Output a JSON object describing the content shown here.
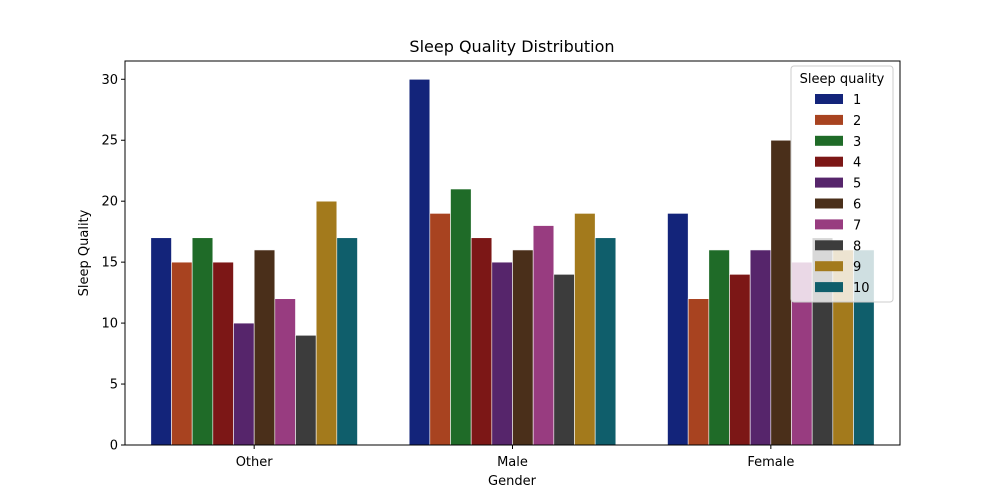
{
  "chart_data": {
    "type": "bar",
    "title": "Sleep Quality Distribution",
    "xlabel": "Gender",
    "ylabel": "Sleep Quality",
    "categories": [
      "Other",
      "Male",
      "Female"
    ],
    "ylim": [
      0,
      31.5
    ],
    "yticks": [
      "0",
      "5",
      "10",
      "15",
      "20",
      "25",
      "30"
    ],
    "grid": false,
    "legend": {
      "title": "Sleep quality",
      "placement": "top-right"
    },
    "series": [
      {
        "name": "1",
        "color": "#13247a",
        "values": [
          17,
          30,
          19
        ]
      },
      {
        "name": "2",
        "color": "#a84320",
        "values": [
          15,
          19,
          12
        ]
      },
      {
        "name": "3",
        "color": "#1f6b28",
        "values": [
          17,
          21,
          16
        ]
      },
      {
        "name": "4",
        "color": "#7c1716",
        "values": [
          15,
          17,
          14
        ]
      },
      {
        "name": "5",
        "color": "#56256b",
        "values": [
          10,
          15,
          16
        ]
      },
      {
        "name": "6",
        "color": "#4a2f1a",
        "values": [
          16,
          16,
          25
        ]
      },
      {
        "name": "7",
        "color": "#983c80",
        "values": [
          12,
          18,
          15
        ]
      },
      {
        "name": "8",
        "color": "#3c3c3c",
        "values": [
          9,
          14,
          17
        ]
      },
      {
        "name": "9",
        "color": "#a37a1c",
        "values": [
          20,
          19,
          16
        ]
      },
      {
        "name": "10",
        "color": "#0f5e6b",
        "values": [
          17,
          17,
          16
        ]
      }
    ]
  }
}
